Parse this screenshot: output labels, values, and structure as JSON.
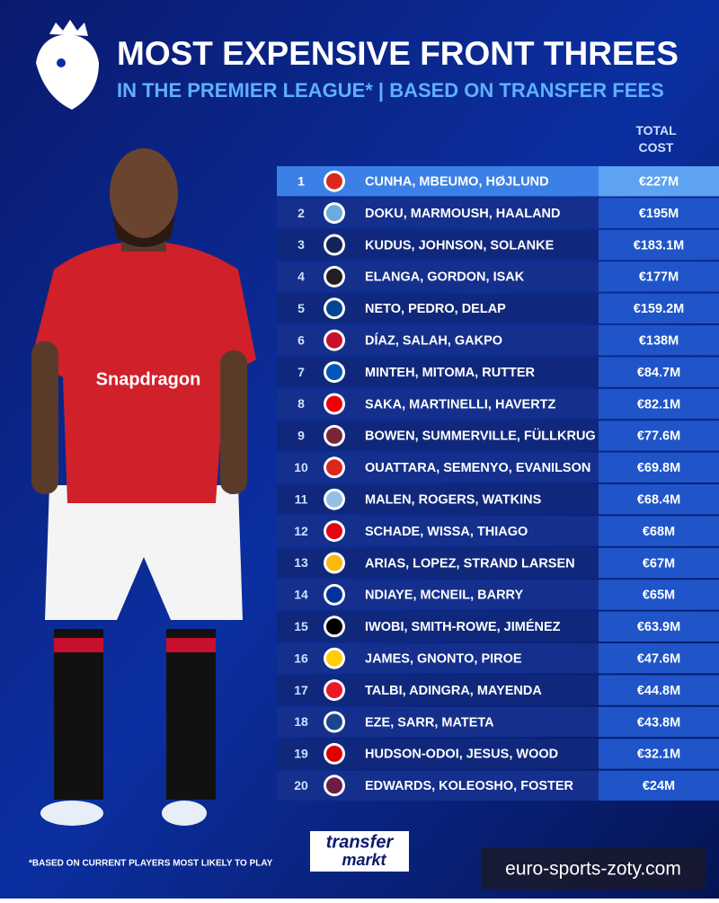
{
  "header": {
    "title": "MOST EXPENSIVE FRONT THREES",
    "subtitle": "IN THE PREMIER LEAGUE* | BASED ON TRANSFER FEES"
  },
  "table": {
    "column_header": "TOTAL COST",
    "rows": [
      [
        "1",
        "CUNHA, MBEUMO, HØJLUND",
        "€227M"
      ],
      [
        "2",
        "DOKU, MARMOUSH, HAALAND",
        "€195M"
      ],
      [
        "3",
        "KUDUS, JOHNSON, SOLANKE",
        "€183.1M"
      ],
      [
        "4",
        "ELANGA, GORDON, ISAK",
        "€177M"
      ],
      [
        "5",
        "NETO, PEDRO, DELAP",
        "€159.2M"
      ],
      [
        "6",
        "DÍAZ, SALAH, GAKPO",
        "€138M"
      ],
      [
        "7",
        "MINTEH, MITOMA, RUTTER",
        "€84.7M"
      ],
      [
        "8",
        "SAKA, MARTINELLI, HAVERTZ",
        "€82.1M"
      ],
      [
        "9",
        "BOWEN, SUMMERVILLE, FÜLLKRUG",
        "€77.6M"
      ],
      [
        "10",
        "OUATTARA, SEMENYO, EVANILSON",
        "€69.8M"
      ],
      [
        "11",
        "MALEN, ROGERS, WATKINS",
        "€68.4M"
      ],
      [
        "12",
        "SCHADE, WISSA, THIAGO",
        "€68M"
      ],
      [
        "13",
        "ARIAS, LOPEZ, STRAND LARSEN",
        "€67M"
      ],
      [
        "14",
        "NDIAYE, MCNEIL, BARRY",
        "€65M"
      ],
      [
        "15",
        "IWOBI, SMITH-ROWE, JIMÉNEZ",
        "€63.9M"
      ],
      [
        "16",
        "JAMES, GNONTO, PIROE",
        "€47.6M"
      ],
      [
        "17",
        "TALBI, ADINGRA, MAYENDA",
        "€44.8M"
      ],
      [
        "18",
        "EZE, SARR, MATETA",
        "€43.8M"
      ],
      [
        "19",
        "HUDSON-ODOI, JESUS, WOOD",
        "€32.1M"
      ],
      [
        "20",
        "EDWARDS, KOLEOSHO, FOSTER",
        "€24M"
      ]
    ]
  },
  "footer": {
    "note": "*BASED ON CURRENT PLAYERS MOST LIKELY TO PLAY",
    "logo_top": "transfer",
    "logo_bottom": "markt",
    "watermark": "euro-sports-zoty.com"
  }
}
